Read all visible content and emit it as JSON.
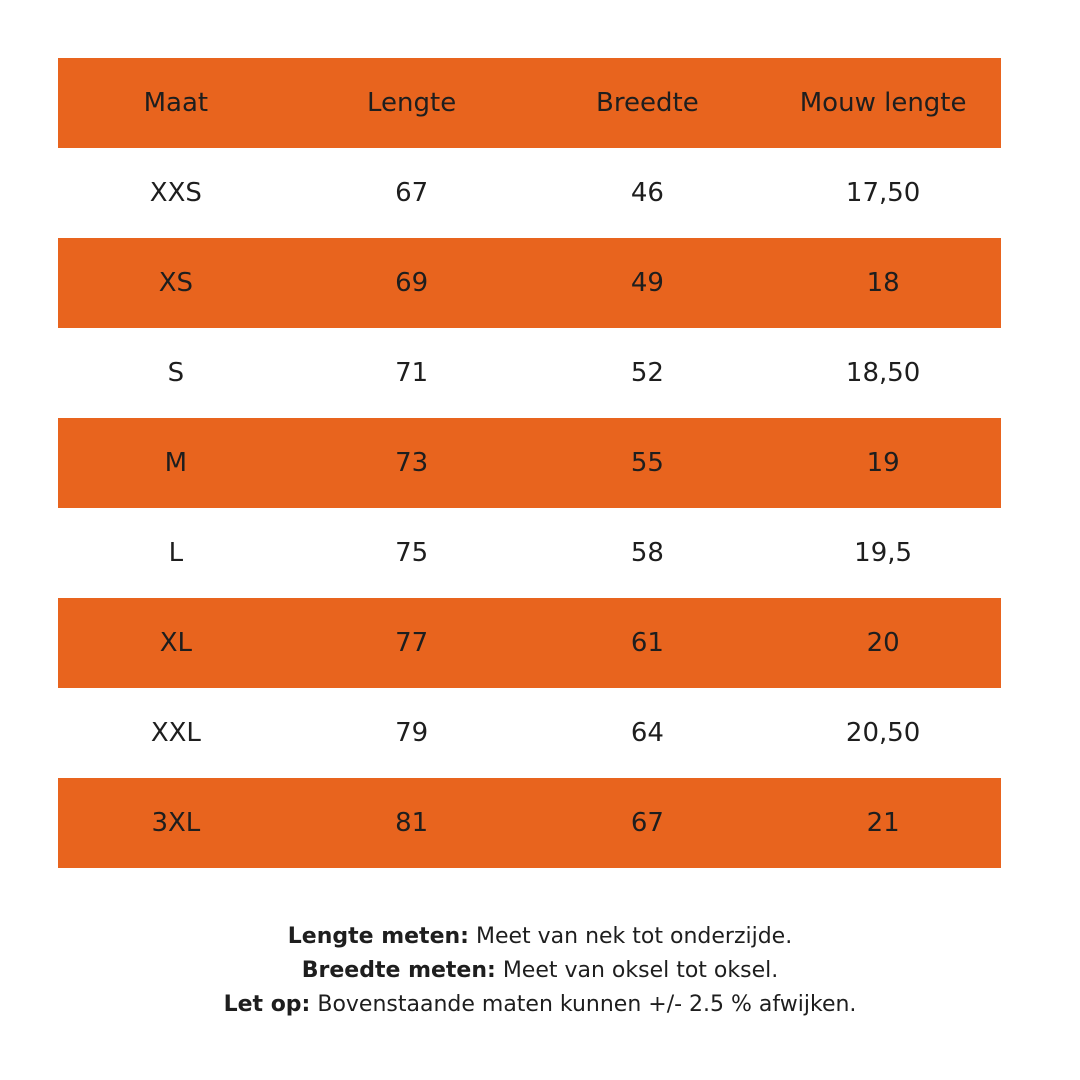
{
  "table": {
    "header": [
      "Maat",
      "Lengte",
      "Breedte",
      "Mouw lengte"
    ],
    "rows": [
      [
        "XXS",
        "67",
        "46",
        "17,50"
      ],
      [
        "XS",
        "69",
        "49",
        "18"
      ],
      [
        "S",
        "71",
        "52",
        "18,50"
      ],
      [
        "M",
        "73",
        "55",
        "19"
      ],
      [
        "L",
        "75",
        "58",
        "19,5"
      ],
      [
        "XL",
        "77",
        "61",
        "20"
      ],
      [
        "XXL",
        "79",
        "64",
        "20,50"
      ],
      [
        "3XL",
        "81",
        "67",
        "21"
      ]
    ]
  },
  "notes": [
    {
      "label": "Lengte meten:",
      "text": "Meet van nek tot onderzijde."
    },
    {
      "label": "Breedte meten:",
      "text": "Meet van oksel tot oksel."
    },
    {
      "label": "Let op:",
      "text": "Bovenstaande maten kunnen +/- 2.5 % afwijken."
    }
  ]
}
